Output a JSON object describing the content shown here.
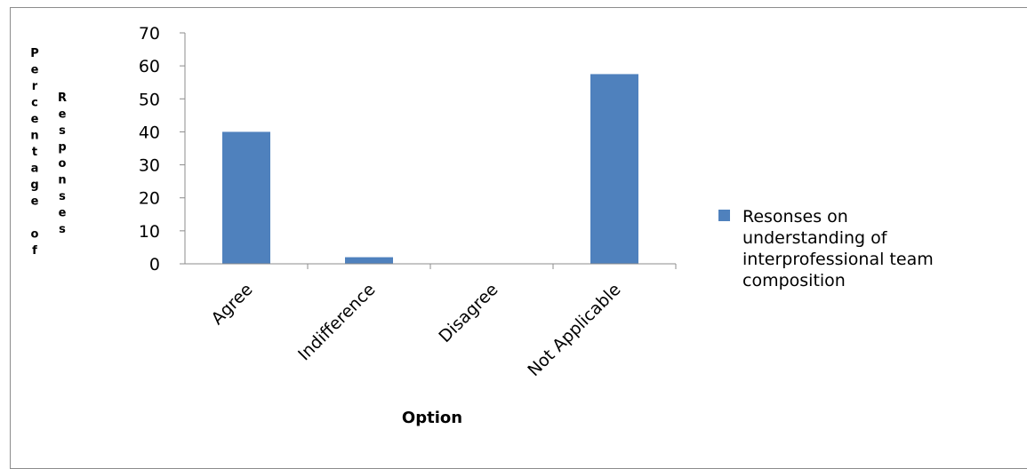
{
  "chart_data": {
    "type": "bar",
    "categories": [
      "Agree",
      "Indifference",
      "Disagree",
      "Not Applicable"
    ],
    "series": [
      {
        "name": "Resonses on understanding of interprofessional team composition",
        "values": [
          40,
          2,
          0,
          57.5
        ]
      }
    ],
    "ylim": [
      0,
      70
    ],
    "yticks": [
      0,
      10,
      20,
      30,
      40,
      50,
      60,
      70
    ],
    "xlabel": "Option",
    "ylabel": "Percentage of Responses",
    "ylabel_parts": [
      "Percentage of",
      "Responses"
    ],
    "legend_lines": [
      "Resonses on",
      "understanding of",
      "interprofessional team",
      "composition"
    ],
    "legend_position": "right",
    "grid": false,
    "colors": {
      "bar": "#4f81bd",
      "axis": "#8c8c8c",
      "frame": "#8c8c8c"
    }
  }
}
